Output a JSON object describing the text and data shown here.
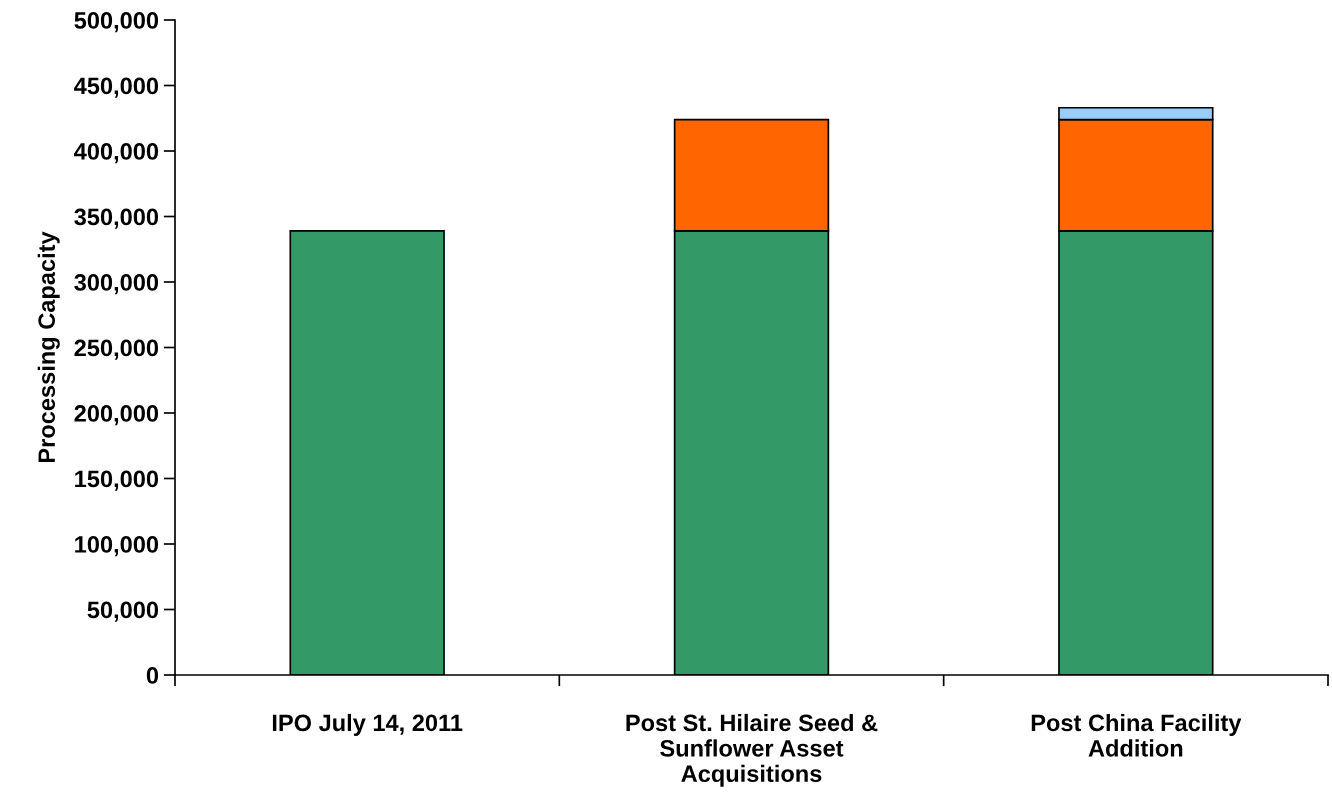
{
  "chart_data": {
    "type": "bar",
    "stacked": true,
    "ylabel": "Processing Capacity",
    "categories": [
      "IPO July 14, 2011",
      "Post St. Hilaire Seed &\nSunflower Asset\nAcquisitions",
      "Post China Facility\nAddition"
    ],
    "series": [
      {
        "color": "#339966",
        "values": [
          339000,
          339000,
          339000
        ]
      },
      {
        "color": "#ff6600",
        "values": [
          null,
          85000,
          85000
        ]
      },
      {
        "color": "#99ccff",
        "values": [
          null,
          null,
          9000
        ]
      }
    ],
    "ylim": [
      0,
      500000
    ],
    "yticks": [
      {
        "value": 0,
        "label": "0"
      },
      {
        "value": 50000,
        "label": "50,000"
      },
      {
        "value": 100000,
        "label": "100,000"
      },
      {
        "value": 150000,
        "label": "150,000"
      },
      {
        "value": 200000,
        "label": "200,000"
      },
      {
        "value": 250000,
        "label": "250,000"
      },
      {
        "value": 300000,
        "label": "300,000"
      },
      {
        "value": 350000,
        "label": "350,000"
      },
      {
        "value": 400000,
        "label": "400,000"
      },
      {
        "value": 450000,
        "label": "450,000"
      },
      {
        "value": 500000,
        "label": "500,000"
      }
    ],
    "grid": false
  }
}
